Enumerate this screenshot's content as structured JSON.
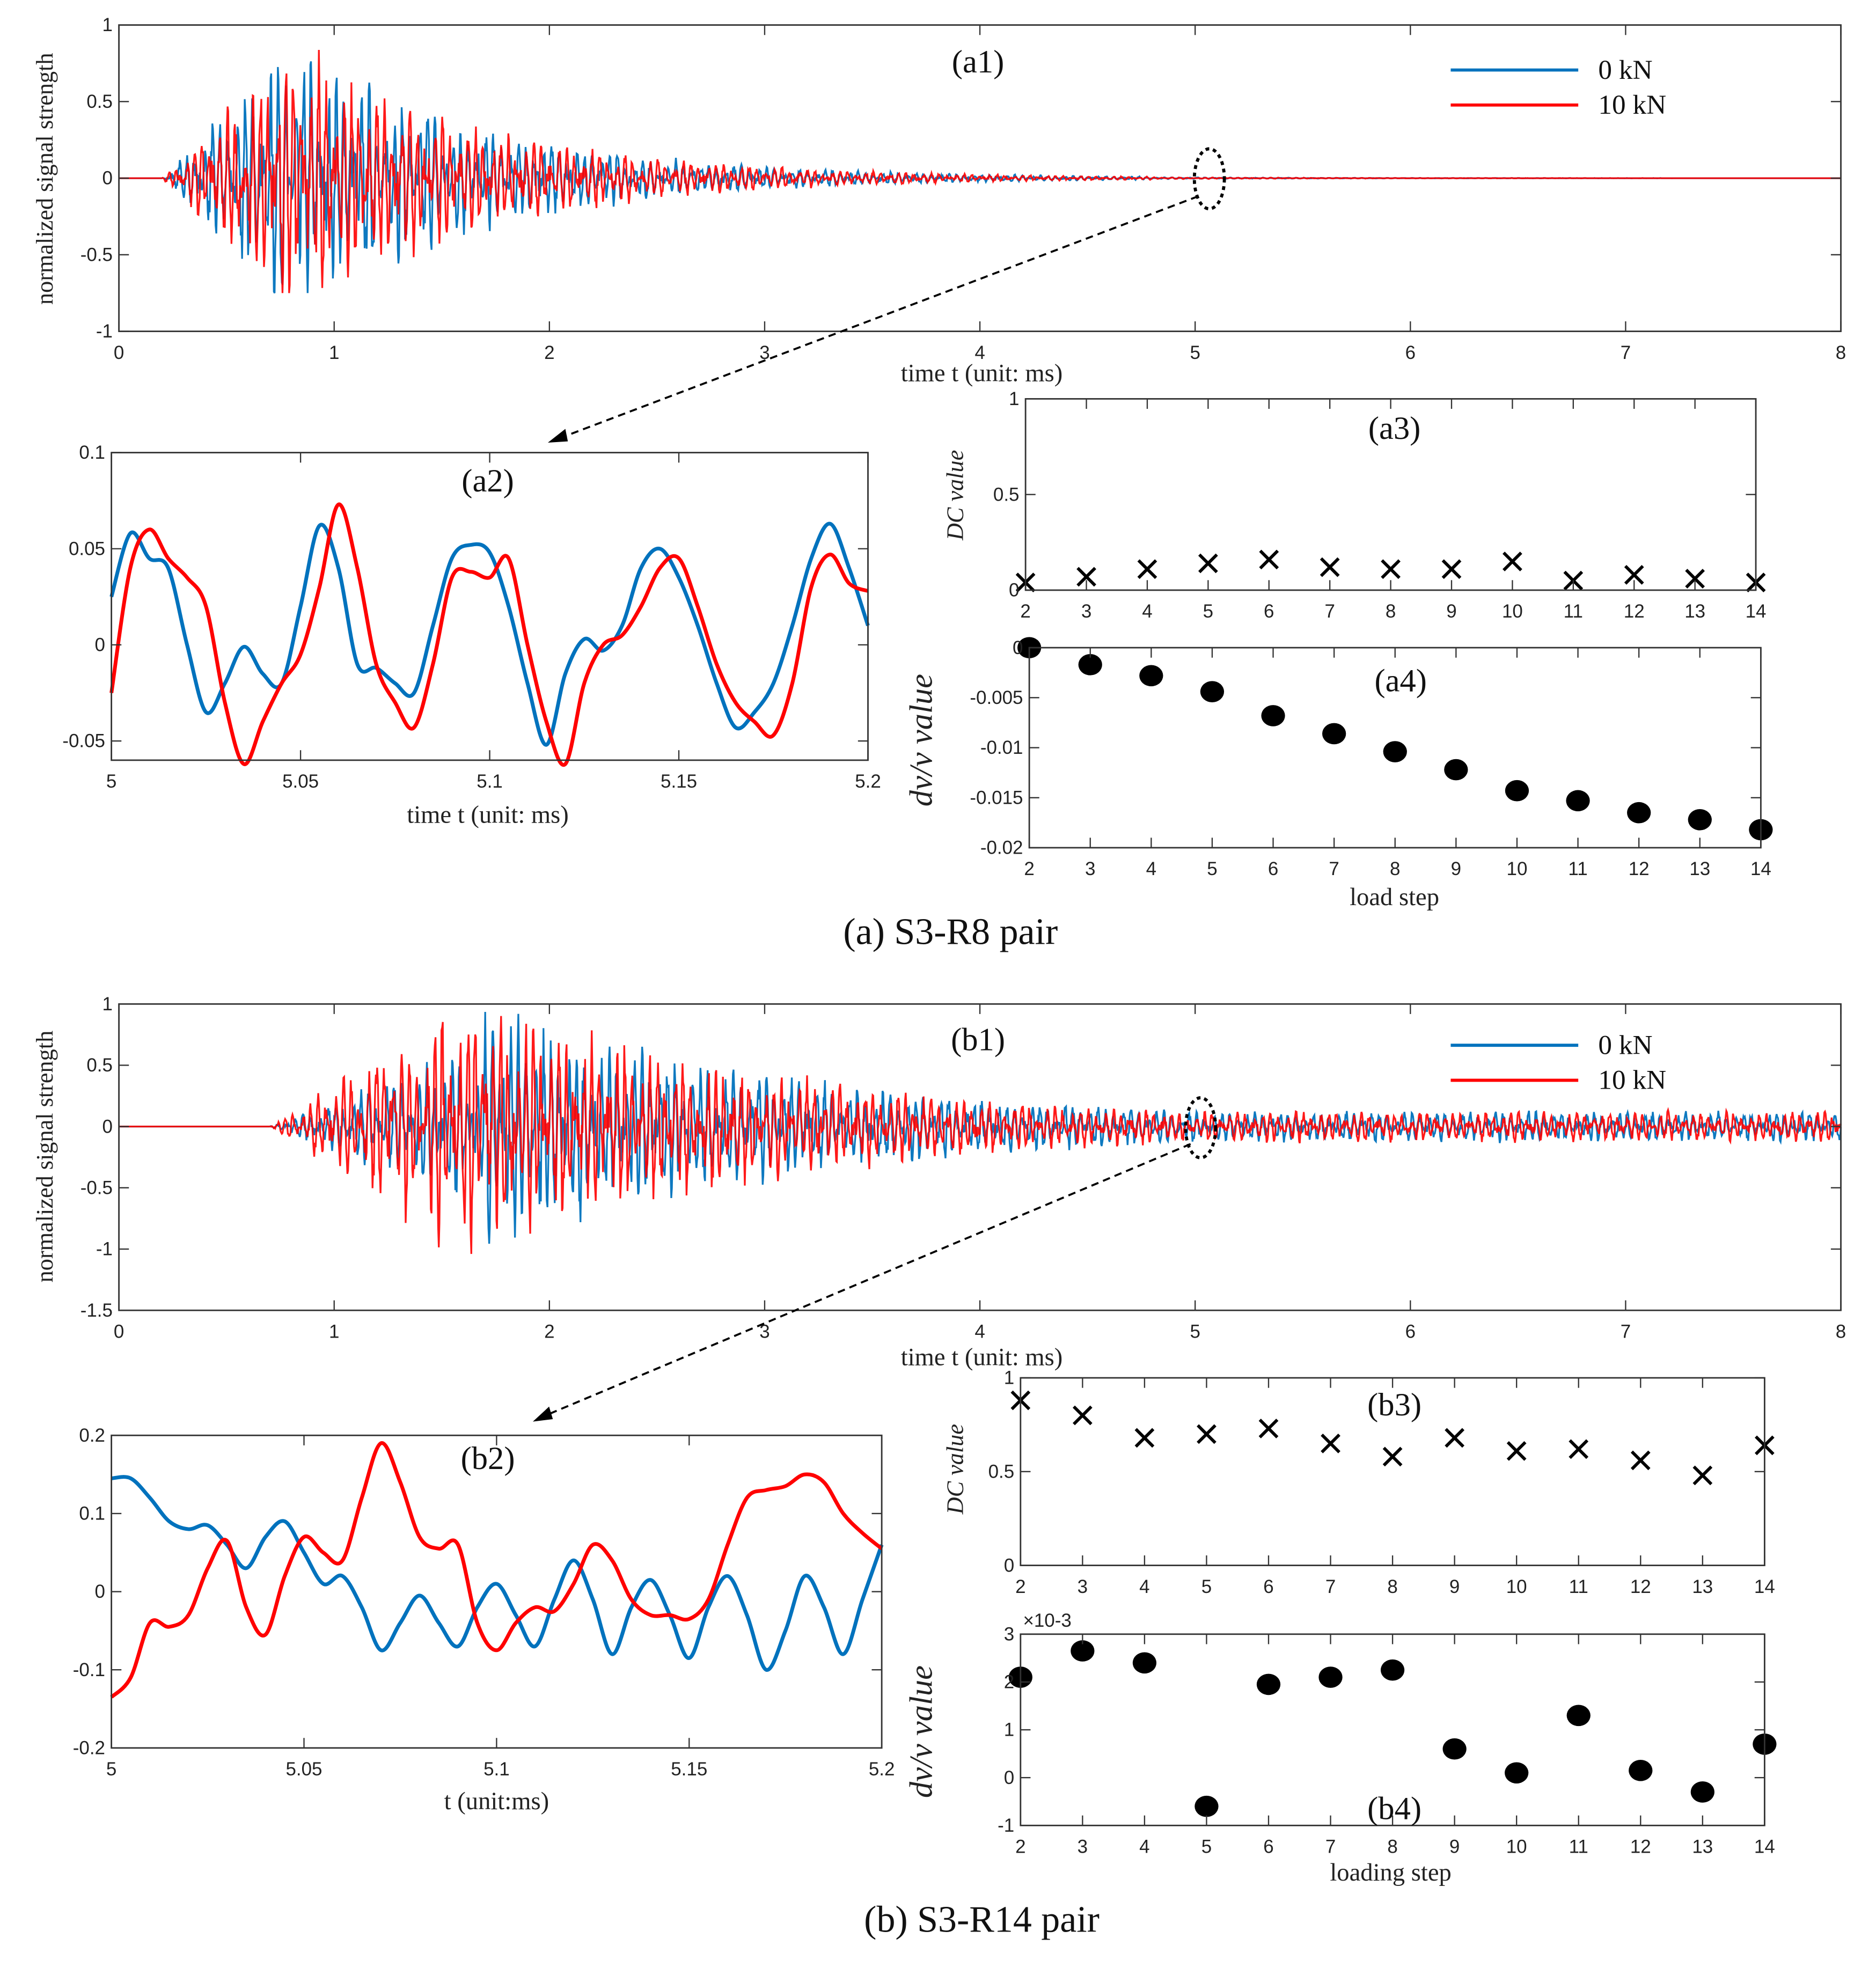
{
  "colors": {
    "blue": "#0072BD",
    "red": "#FF0000",
    "marker": "#000000"
  },
  "captions": {
    "a": "(a) S3-R8 pair",
    "b": "(b) S3-R14 pair"
  },
  "legend": [
    "0 kN",
    "10 kN"
  ],
  "chart_data": [
    {
      "id": "a1",
      "type": "line",
      "title": "(a1)",
      "xlabel": "time t (unit: ms)",
      "ylabel": "normalized signal strength",
      "xlim": [
        0,
        8
      ],
      "ylim": [
        -1,
        1
      ],
      "xticks": [
        0,
        1,
        2,
        3,
        4,
        5,
        6,
        7,
        8
      ],
      "yticks": [
        -1,
        -0.5,
        0,
        0.5,
        1
      ],
      "series": [
        {
          "name": "0 kN"
        },
        {
          "name": "10 kN"
        }
      ],
      "annotation": "zoom region at t = 5 ms"
    },
    {
      "id": "a2",
      "type": "line",
      "title": "(a2)",
      "xlabel": "time  t (unit: ms)",
      "xlim": [
        5,
        5.2
      ],
      "ylim": [
        -0.06,
        0.1
      ],
      "xticks": [
        5,
        5.05,
        5.1,
        5.15,
        5.2
      ],
      "yticks": [
        -0.05,
        0,
        0.05,
        0.1
      ],
      "x_start": 5,
      "x_step": 0.005,
      "series": [
        {
          "name": "0 kN",
          "values": [
            0.025,
            0.058,
            0.045,
            0.04,
            0.0,
            -0.035,
            -0.02,
            -0.001,
            -0.015,
            -0.02,
            0.02,
            0.062,
            0.04,
            -0.01,
            -0.012,
            -0.02,
            -0.025,
            0.01,
            0.045,
            0.052,
            0.048,
            0.02,
            -0.02,
            -0.052,
            -0.015,
            0.003,
            -0.003,
            0.01,
            0.04,
            0.05,
            0.035,
            0.01,
            -0.02,
            -0.043,
            -0.035,
            -0.02,
            0.01,
            0.045,
            0.063,
            0.04,
            0.01
          ]
        },
        {
          "name": "10 kN",
          "values": [
            -0.025,
            0.04,
            0.06,
            0.045,
            0.035,
            0.02,
            -0.03,
            -0.062,
            -0.04,
            -0.02,
            -0.005,
            0.03,
            0.073,
            0.04,
            -0.01,
            -0.03,
            -0.043,
            -0.01,
            0.035,
            0.038,
            0.035,
            0.045,
            0.0,
            -0.04,
            -0.062,
            -0.02,
            0.0,
            0.005,
            0.02,
            0.04,
            0.045,
            0.02,
            -0.01,
            -0.03,
            -0.04,
            -0.047,
            -0.02,
            0.03,
            0.047,
            0.032,
            0.028
          ]
        }
      ]
    },
    {
      "id": "a3",
      "type": "scatter",
      "title": "(a3)",
      "ylabel": "DC value",
      "xlim": [
        2,
        14
      ],
      "ylim": [
        0,
        1
      ],
      "xticks": [
        2,
        3,
        4,
        5,
        6,
        7,
        8,
        9,
        10,
        11,
        12,
        13,
        14
      ],
      "yticks": [
        0,
        0.5,
        1
      ],
      "marker": "x",
      "x": [
        2,
        3,
        4,
        5,
        6,
        7,
        8,
        9,
        10,
        11,
        12,
        13,
        14
      ],
      "values": [
        0.04,
        0.07,
        0.11,
        0.14,
        0.16,
        0.12,
        0.11,
        0.11,
        0.15,
        0.05,
        0.08,
        0.06,
        0.04
      ]
    },
    {
      "id": "a4",
      "type": "scatter",
      "title": "(a4)",
      "xlabel": "load step",
      "ylabel": "dv/v value",
      "xlim": [
        2,
        14
      ],
      "ylim": [
        -0.02,
        0
      ],
      "xticks": [
        2,
        3,
        4,
        5,
        6,
        7,
        8,
        9,
        10,
        11,
        12,
        13,
        14
      ],
      "yticks": [
        -0.02,
        -0.015,
        -0.01,
        -0.005,
        0
      ],
      "marker": "dot",
      "x": [
        2,
        3,
        4,
        5,
        6,
        7,
        8,
        9,
        10,
        11,
        12,
        13,
        14
      ],
      "values": [
        0,
        -0.0017,
        -0.0028,
        -0.0044,
        -0.0068,
        -0.0086,
        -0.0104,
        -0.0122,
        -0.0143,
        -0.0153,
        -0.0165,
        -0.0172,
        -0.0182
      ]
    },
    {
      "id": "b1",
      "type": "line",
      "title": "(b1)",
      "xlabel": "time t (unit: ms)",
      "ylabel": "normalized signal strength",
      "xlim": [
        0,
        8
      ],
      "ylim": [
        -1.5,
        1
      ],
      "xticks": [
        0,
        1,
        2,
        3,
        4,
        5,
        6,
        7,
        8
      ],
      "yticks": [
        -1.5,
        -1,
        -0.5,
        0,
        0.5,
        1
      ],
      "series": [
        {
          "name": "0 kN"
        },
        {
          "name": "10 kN"
        }
      ],
      "annotation": "zoom region at t = 5 ms"
    },
    {
      "id": "b2",
      "type": "line",
      "title": "(b2)",
      "xlabel": "t (unit:ms)",
      "xlim": [
        5,
        5.2
      ],
      "ylim": [
        -0.2,
        0.2
      ],
      "xticks": [
        5,
        5.05,
        5.1,
        5.15,
        5.2
      ],
      "yticks": [
        -0.2,
        -0.1,
        0,
        0.1,
        0.2
      ],
      "x_start": 5,
      "x_step": 0.005,
      "series": [
        {
          "name": "0 kN",
          "values": [
            0.145,
            0.145,
            0.12,
            0.09,
            0.08,
            0.085,
            0.06,
            0.03,
            0.07,
            0.09,
            0.05,
            0.01,
            0.02,
            -0.02,
            -0.075,
            -0.04,
            -0.005,
            -0.04,
            -0.07,
            -0.02,
            0.01,
            -0.03,
            -0.07,
            -0.01,
            0.04,
            -0.01,
            -0.08,
            -0.02,
            0.015,
            -0.03,
            -0.085,
            -0.02,
            0.02,
            -0.03,
            -0.1,
            -0.05,
            0.02,
            -0.02,
            -0.08,
            -0.01,
            0.06
          ]
        },
        {
          "name": "10 kN",
          "values": [
            -0.135,
            -0.11,
            -0.04,
            -0.045,
            -0.03,
            0.03,
            0.065,
            -0.02,
            -0.055,
            0.02,
            0.07,
            0.05,
            0.04,
            0.12,
            0.19,
            0.14,
            0.07,
            0.055,
            0.06,
            -0.04,
            -0.075,
            -0.04,
            -0.02,
            -0.025,
            0.01,
            0.06,
            0.04,
            -0.01,
            -0.03,
            -0.03,
            -0.035,
            -0.01,
            0.06,
            0.12,
            0.13,
            0.135,
            0.15,
            0.14,
            0.1,
            0.075,
            0.055
          ]
        }
      ]
    },
    {
      "id": "b3",
      "type": "scatter",
      "title": "(b3)",
      "ylabel": "DC  value",
      "xlim": [
        2,
        14
      ],
      "ylim": [
        0,
        1
      ],
      "xticks": [
        2,
        3,
        4,
        5,
        6,
        7,
        8,
        9,
        10,
        11,
        12,
        13,
        14
      ],
      "yticks": [
        0,
        0.5,
        1
      ],
      "marker": "x",
      "x": [
        2,
        3,
        4,
        5,
        6,
        7,
        8,
        9,
        10,
        11,
        12,
        13,
        14
      ],
      "values": [
        0.88,
        0.8,
        0.68,
        0.7,
        0.73,
        0.65,
        0.58,
        0.68,
        0.61,
        0.62,
        0.56,
        0.48,
        0.64
      ]
    },
    {
      "id": "b4",
      "type": "scatter",
      "title": "(b4)",
      "xlabel": "loading step",
      "ylabel": "dv/v value",
      "yexponent": "×10-3",
      "xlim": [
        2,
        14
      ],
      "ylim": [
        -1,
        3
      ],
      "xticks": [
        2,
        3,
        4,
        5,
        6,
        7,
        8,
        9,
        10,
        11,
        12,
        13,
        14
      ],
      "yticks": [
        -1,
        0,
        1,
        2,
        3
      ],
      "marker": "dot",
      "x": [
        2,
        3,
        4,
        5,
        6,
        7,
        8,
        9,
        10,
        11,
        12,
        13,
        14
      ],
      "values": [
        2.1,
        2.65,
        2.4,
        -0.6,
        1.95,
        2.1,
        2.25,
        0.6,
        0.1,
        1.3,
        0.15,
        -0.3,
        0.7
      ]
    }
  ]
}
